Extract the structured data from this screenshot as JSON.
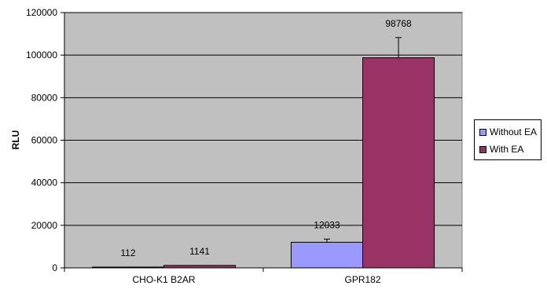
{
  "chart_data": {
    "type": "bar",
    "categories": [
      "CHO-K1 B2AR",
      "GPR182"
    ],
    "series": [
      {
        "name": "Without EA",
        "color": "#9999ff",
        "values": [
          112,
          12033
        ],
        "errors": [
          0,
          1500
        ]
      },
      {
        "name": "With EA",
        "color": "#993366",
        "values": [
          1141,
          98768
        ],
        "errors": [
          0,
          9500
        ]
      }
    ],
    "data_labels": [
      [
        "112",
        "12033"
      ],
      [
        "1141",
        "98768"
      ]
    ],
    "ylabel": "RLU",
    "xlabel": "",
    "title": "",
    "ylim": [
      0,
      120000
    ],
    "yticks": [
      "0",
      "20000",
      "40000",
      "60000",
      "80000",
      "100000",
      "120000"
    ],
    "grid": true,
    "plot_background": "#c0c0c0",
    "legend_position": "right"
  }
}
